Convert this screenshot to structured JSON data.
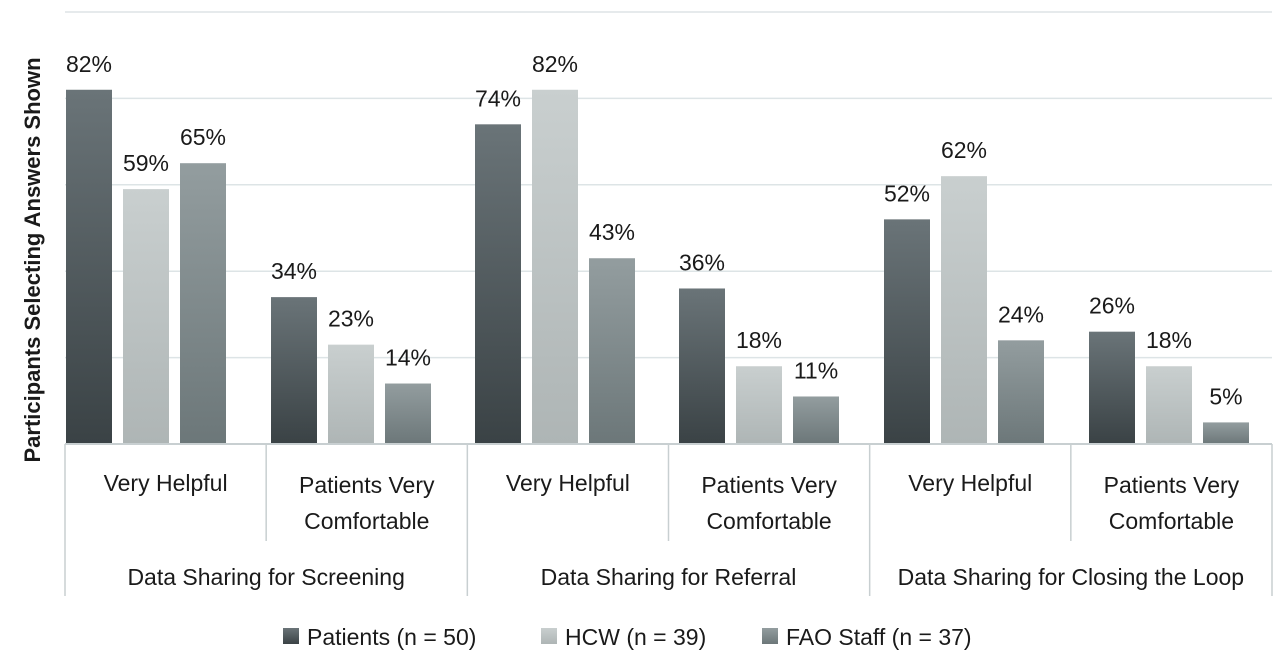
{
  "chart_data": {
    "type": "bar",
    "ylabel": "Participants Selecting Answers Shown",
    "ylim": [
      0,
      100
    ],
    "grid": true,
    "legend_position": "bottom",
    "groups": [
      {
        "label": "Data Sharing for Screening",
        "categories": [
          "Very Helpful",
          "Patients Very\nComfortable"
        ]
      },
      {
        "label": "Data Sharing for Referral",
        "categories": [
          "Very Helpful",
          "Patients Very\nComfortable"
        ]
      },
      {
        "label": "Data Sharing for Closing the Loop",
        "categories": [
          "Very Helpful",
          "Patients Very\nComfortable"
        ]
      }
    ],
    "series": [
      {
        "name": "Patients (n = 50)",
        "color": "#4a5357",
        "values": [
          82,
          34,
          74,
          36,
          52,
          26
        ],
        "labels": [
          "82%",
          "34%",
          "74%",
          "36%",
          "52%",
          "26%"
        ]
      },
      {
        "name": "HCW (n = 39)",
        "color": "#bdc3c3",
        "values": [
          59,
          23,
          82,
          18,
          62,
          18
        ],
        "labels": [
          "59%",
          "23%",
          "82%",
          "18%",
          "62%",
          "18%"
        ]
      },
      {
        "name": "FAO Staff (n = 37)",
        "color": "#7f8a8c",
        "values": [
          65,
          14,
          43,
          11,
          24,
          5
        ],
        "labels": [
          "65%",
          "14%",
          "43%",
          "11%",
          "24%",
          "5%"
        ]
      }
    ]
  }
}
